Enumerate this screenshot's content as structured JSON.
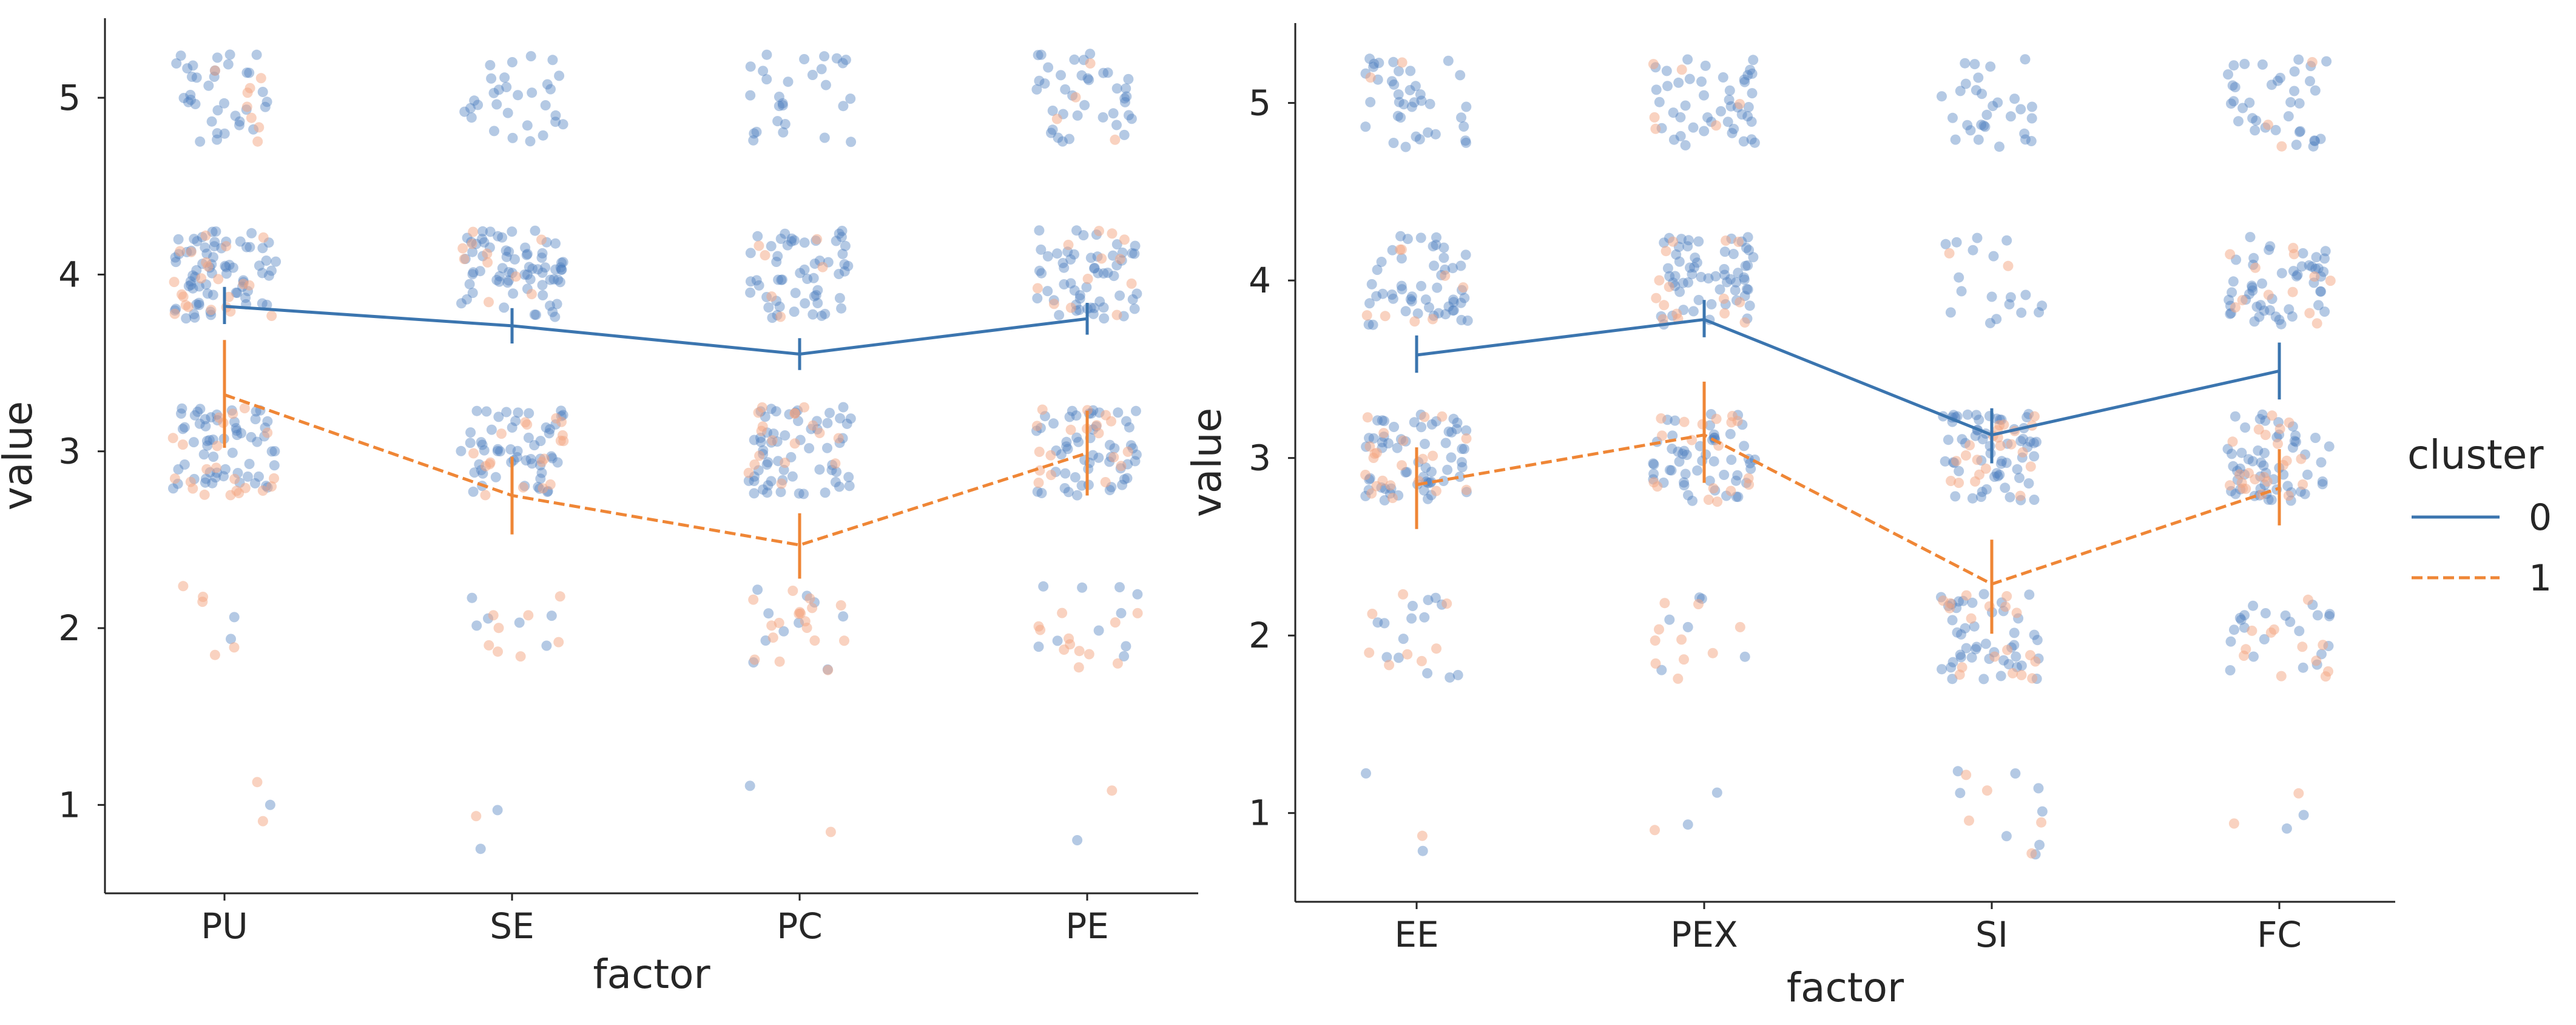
{
  "chart_data": [
    {
      "type": "point",
      "subtype": "pointplot with jittered strip points",
      "title": "",
      "xlabel": "factor",
      "ylabel": "value",
      "categories": [
        "PU",
        "SE",
        "PC",
        "PE"
      ],
      "yticks": [
        1,
        2,
        3,
        4,
        5
      ],
      "ylim": [
        0.5,
        5.45
      ],
      "grid": false,
      "series": [
        {
          "name": "0",
          "values": [
            3.82,
            3.71,
            3.55,
            3.75
          ],
          "ci_low": [
            3.72,
            3.61,
            3.46,
            3.66
          ],
          "ci_high": [
            3.93,
            3.81,
            3.64,
            3.84
          ]
        },
        {
          "name": "1",
          "values": [
            3.32,
            2.75,
            2.47,
            2.99
          ],
          "ci_low": [
            3.02,
            2.53,
            2.28,
            2.75
          ],
          "ci_high": [
            3.63,
            2.97,
            2.65,
            3.23
          ]
        }
      ]
    },
    {
      "type": "point",
      "subtype": "pointplot with jittered strip points",
      "title": "",
      "xlabel": "factor",
      "ylabel": "value",
      "categories": [
        "EE",
        "PEX",
        "SI",
        "FC"
      ],
      "yticks": [
        1,
        2,
        3,
        4,
        5
      ],
      "ylim": [
        0.5,
        5.45
      ],
      "grid": false,
      "series": [
        {
          "name": "0",
          "values": [
            3.58,
            3.78,
            3.13,
            3.49
          ],
          "ci_low": [
            3.48,
            3.68,
            2.97,
            3.33
          ],
          "ci_high": [
            3.69,
            3.89,
            3.28,
            3.65
          ]
        },
        {
          "name": "1",
          "values": [
            2.85,
            3.13,
            2.29,
            2.83
          ],
          "ci_low": [
            2.6,
            2.86,
            2.01,
            2.62
          ],
          "ci_high": [
            3.06,
            3.43,
            2.54,
            3.05
          ]
        }
      ]
    }
  ],
  "legend": {
    "title": "cluster",
    "placement": "right",
    "items": [
      {
        "label": "0",
        "color": "#3b75af",
        "style": "solid"
      },
      {
        "label": "1",
        "color": "#ef8636",
        "style": "dashed"
      }
    ]
  },
  "colors": {
    "cluster0_line": "#3b75af",
    "cluster1_line": "#ef8636",
    "cluster0_point": "#4c7fbf",
    "cluster1_point": "#f4a582",
    "axis": "#262626"
  }
}
